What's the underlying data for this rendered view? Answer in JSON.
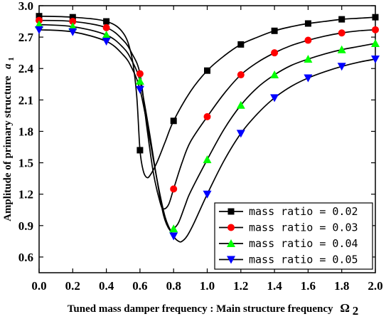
{
  "chart_data": {
    "type": "line",
    "xlabel": "Tuned mass damper frequency : Main structure frequency",
    "xlabel_symbol": "Ω",
    "xlabel_symbol_sub": "2",
    "ylabel": "Amplitude of primary structure",
    "ylabel_symbol": "a",
    "ylabel_symbol_sub": "1",
    "xlim": [
      0.0,
      2.0
    ],
    "ylim": [
      0.45,
      3.0
    ],
    "xticks": [
      "0.0",
      "0.2",
      "0.4",
      "0.6",
      "0.8",
      "1.0",
      "1.2",
      "1.4",
      "1.6",
      "1.8",
      "2.0"
    ],
    "yticks": [
      "0.6",
      "0.9",
      "1.2",
      "1.5",
      "1.8",
      "2.1",
      "2.4",
      "2.7",
      "3.0"
    ],
    "xtick_values": [
      0.0,
      0.2,
      0.4,
      0.6,
      0.8,
      1.0,
      1.2,
      1.4,
      1.6,
      1.8,
      2.0
    ],
    "ytick_values": [
      0.6,
      0.9,
      1.2,
      1.5,
      1.8,
      2.1,
      2.4,
      2.7,
      3.0
    ],
    "grid": false,
    "legend_position": "bottom-right",
    "series": [
      {
        "name": "mass ratio = 0.02",
        "color": "#000000",
        "marker": "square",
        "marker_x": [
          0.0,
          0.2,
          0.4,
          0.6,
          0.8,
          1.0,
          1.2,
          1.4,
          1.6,
          1.8,
          2.0
        ],
        "marker_y": [
          2.9,
          2.89,
          2.85,
          1.62,
          1.9,
          2.38,
          2.63,
          2.76,
          2.83,
          2.87,
          2.89
        ],
        "x": [
          0.0,
          0.2,
          0.4,
          0.5,
          0.55,
          0.58,
          0.6,
          0.62,
          0.64,
          0.66,
          0.7,
          0.75,
          0.8,
          0.9,
          1.0,
          1.1,
          1.2,
          1.3,
          1.4,
          1.5,
          1.6,
          1.7,
          1.8,
          1.9,
          2.0
        ],
        "y": [
          2.9,
          2.89,
          2.85,
          2.74,
          2.52,
          2.15,
          1.62,
          1.42,
          1.36,
          1.38,
          1.5,
          1.7,
          1.9,
          2.18,
          2.38,
          2.52,
          2.63,
          2.7,
          2.76,
          2.8,
          2.83,
          2.85,
          2.87,
          2.88,
          2.89
        ]
      },
      {
        "name": "mass ratio = 0.03",
        "color": "#ff0000",
        "marker": "circle",
        "marker_x": [
          0.0,
          0.2,
          0.4,
          0.6,
          0.8,
          1.0,
          1.2,
          1.4,
          1.6,
          1.8,
          2.0
        ],
        "marker_y": [
          2.86,
          2.85,
          2.79,
          2.35,
          1.25,
          1.94,
          2.34,
          2.55,
          2.67,
          2.74,
          2.77
        ],
        "x": [
          0.0,
          0.2,
          0.4,
          0.5,
          0.55,
          0.6,
          0.64,
          0.68,
          0.72,
          0.74,
          0.77,
          0.8,
          0.85,
          0.9,
          1.0,
          1.1,
          1.2,
          1.3,
          1.4,
          1.5,
          1.6,
          1.7,
          1.8,
          1.9,
          2.0
        ],
        "y": [
          2.86,
          2.85,
          2.79,
          2.67,
          2.55,
          2.35,
          1.85,
          1.4,
          1.12,
          1.06,
          1.1,
          1.25,
          1.5,
          1.7,
          1.94,
          2.16,
          2.34,
          2.46,
          2.55,
          2.62,
          2.67,
          2.71,
          2.74,
          2.76,
          2.77
        ]
      },
      {
        "name": "mass ratio = 0.04",
        "color": "#00ff00",
        "marker": "triangle-up",
        "marker_x": [
          0.0,
          0.2,
          0.4,
          0.6,
          0.8,
          1.0,
          1.2,
          1.4,
          1.6,
          1.8,
          2.0
        ],
        "marker_y": [
          2.82,
          2.8,
          2.72,
          2.28,
          0.87,
          1.53,
          2.05,
          2.34,
          2.49,
          2.58,
          2.64
        ],
        "x": [
          0.0,
          0.2,
          0.4,
          0.5,
          0.55,
          0.6,
          0.65,
          0.7,
          0.74,
          0.78,
          0.8,
          0.83,
          0.87,
          0.9,
          1.0,
          1.1,
          1.2,
          1.3,
          1.4,
          1.5,
          1.6,
          1.7,
          1.8,
          1.9,
          2.0
        ],
        "y": [
          2.82,
          2.8,
          2.72,
          2.6,
          2.48,
          2.28,
          1.85,
          1.35,
          1.0,
          0.85,
          0.87,
          0.93,
          1.1,
          1.22,
          1.53,
          1.82,
          2.05,
          2.22,
          2.34,
          2.43,
          2.49,
          2.54,
          2.58,
          2.61,
          2.64
        ]
      },
      {
        "name": "mass ratio = 0.05",
        "color": "#0000ff",
        "marker": "triangle-down",
        "marker_x": [
          0.0,
          0.2,
          0.4,
          0.6,
          0.8,
          1.0,
          1.2,
          1.4,
          1.6,
          1.8,
          2.0
        ],
        "marker_y": [
          2.77,
          2.75,
          2.66,
          2.2,
          0.8,
          1.2,
          1.78,
          2.12,
          2.31,
          2.42,
          2.49
        ],
        "x": [
          0.0,
          0.2,
          0.4,
          0.5,
          0.55,
          0.6,
          0.65,
          0.7,
          0.75,
          0.8,
          0.83,
          0.85,
          0.88,
          0.92,
          1.0,
          1.1,
          1.2,
          1.3,
          1.4,
          1.5,
          1.6,
          1.7,
          1.8,
          1.9,
          2.0
        ],
        "y": [
          2.77,
          2.75,
          2.66,
          2.53,
          2.41,
          2.2,
          1.8,
          1.35,
          0.98,
          0.8,
          0.75,
          0.75,
          0.8,
          0.92,
          1.2,
          1.52,
          1.78,
          1.97,
          2.12,
          2.23,
          2.31,
          2.37,
          2.42,
          2.46,
          2.49
        ]
      }
    ]
  }
}
